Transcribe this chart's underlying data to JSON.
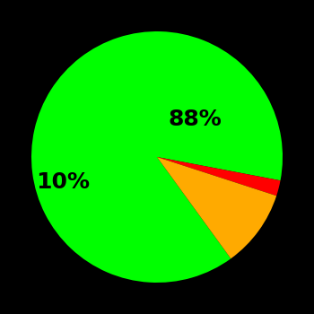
{
  "slices": [
    88,
    2,
    10
  ],
  "colors": [
    "#00ff00",
    "#ff0000",
    "#ffaa00"
  ],
  "labels": [
    "88%",
    "",
    "10%"
  ],
  "background_color": "#000000",
  "startangle": -54,
  "label_distance": 0.6,
  "label_fontsize": 18,
  "label_fontweight": "bold",
  "counterclock": false
}
